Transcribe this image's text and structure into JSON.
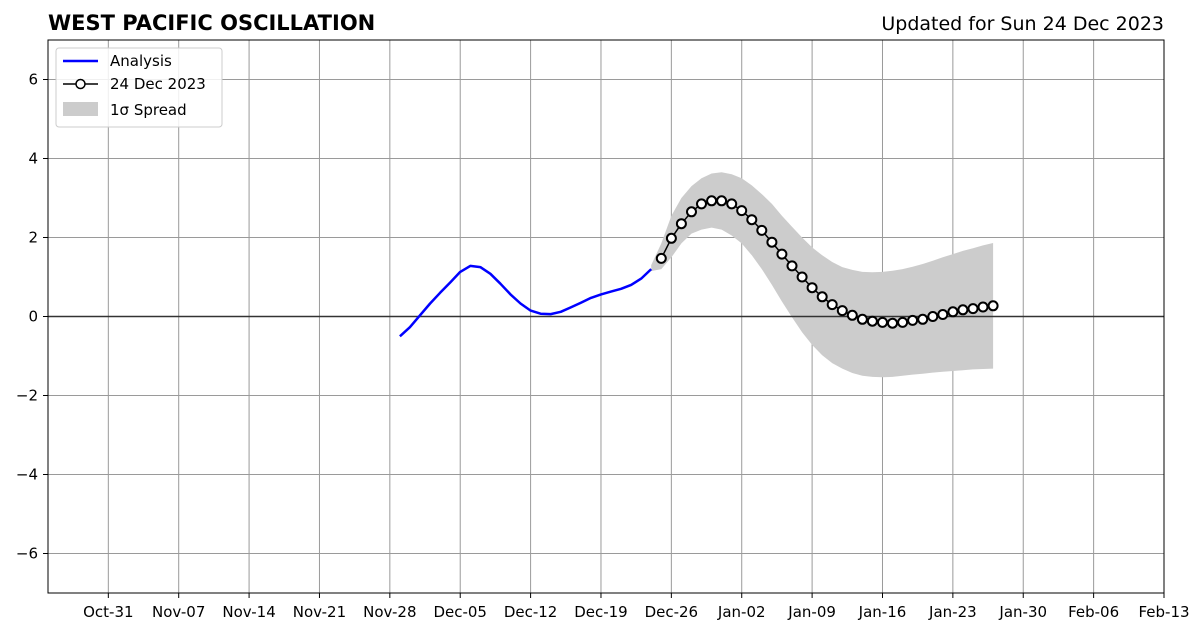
{
  "chart_data": {
    "type": "line",
    "title": "WEST PACIFIC OSCILLATION",
    "subtitle": "Updated for Sun 24 Dec 2023",
    "xlabel": "",
    "ylabel": "",
    "x_start_date": "2023-10-25",
    "xlim": [
      "2023-10-25",
      "2024-02-13"
    ],
    "ylim": [
      -7,
      7
    ],
    "x_ticks": [
      {
        "date": "2023-10-31",
        "label": "Oct-31"
      },
      {
        "date": "2023-11-07",
        "label": "Nov-07"
      },
      {
        "date": "2023-11-14",
        "label": "Nov-14"
      },
      {
        "date": "2023-11-21",
        "label": "Nov-21"
      },
      {
        "date": "2023-11-28",
        "label": "Nov-28"
      },
      {
        "date": "2023-12-05",
        "label": "Dec-05"
      },
      {
        "date": "2023-12-12",
        "label": "Dec-12"
      },
      {
        "date": "2023-12-19",
        "label": "Dec-19"
      },
      {
        "date": "2023-12-26",
        "label": "Dec-26"
      },
      {
        "date": "2024-01-02",
        "label": "Jan-02"
      },
      {
        "date": "2024-01-09",
        "label": "Jan-09"
      },
      {
        "date": "2024-01-16",
        "label": "Jan-16"
      },
      {
        "date": "2024-01-23",
        "label": "Jan-23"
      },
      {
        "date": "2024-01-30",
        "label": "Jan-30"
      },
      {
        "date": "2024-02-06",
        "label": "Feb-06"
      },
      {
        "date": "2024-02-13",
        "label": "Feb-13"
      }
    ],
    "y_ticks": [
      {
        "value": -6,
        "label": "−6"
      },
      {
        "value": -4,
        "label": "−4"
      },
      {
        "value": -2,
        "label": "−2"
      },
      {
        "value": 0,
        "label": "0"
      },
      {
        "value": 2,
        "label": "2"
      },
      {
        "value": 4,
        "label": "4"
      },
      {
        "value": 6,
        "label": "6"
      }
    ],
    "grid": true,
    "legend_position": "top-left",
    "series": [
      {
        "name": "Analysis",
        "color": "#0000ff",
        "x": [
          "2023-11-29",
          "2023-11-30",
          "2023-12-01",
          "2023-12-02",
          "2023-12-03",
          "2023-12-04",
          "2023-12-05",
          "2023-12-06",
          "2023-12-07",
          "2023-12-08",
          "2023-12-09",
          "2023-12-10",
          "2023-12-11",
          "2023-12-12",
          "2023-12-13",
          "2023-12-14",
          "2023-12-15",
          "2023-12-16",
          "2023-12-17",
          "2023-12-18",
          "2023-12-19",
          "2023-12-20",
          "2023-12-21",
          "2023-12-22",
          "2023-12-23",
          "2023-12-24"
        ],
        "y": [
          -0.5,
          -0.27,
          0.03,
          0.33,
          0.6,
          0.86,
          1.13,
          1.28,
          1.25,
          1.08,
          0.83,
          0.56,
          0.33,
          0.15,
          0.07,
          0.06,
          0.12,
          0.23,
          0.35,
          0.47,
          0.56,
          0.63,
          0.7,
          0.8,
          0.96,
          1.2
        ]
      },
      {
        "name": "24 Dec 2023",
        "color": "#000000",
        "marker": "circle",
        "x": [
          "2023-12-25",
          "2023-12-26",
          "2023-12-27",
          "2023-12-28",
          "2023-12-29",
          "2023-12-30",
          "2023-12-31",
          "2024-01-01",
          "2024-01-02",
          "2024-01-03",
          "2024-01-04",
          "2024-01-05",
          "2024-01-06",
          "2024-01-07",
          "2024-01-08",
          "2024-01-09",
          "2024-01-10",
          "2024-01-11",
          "2024-01-12",
          "2024-01-13",
          "2024-01-14",
          "2024-01-15",
          "2024-01-16",
          "2024-01-17",
          "2024-01-18",
          "2024-01-19",
          "2024-01-20",
          "2024-01-21",
          "2024-01-22",
          "2024-01-23",
          "2024-01-24",
          "2024-01-25",
          "2024-01-26",
          "2024-01-27"
        ],
        "y": [
          1.47,
          1.98,
          2.35,
          2.65,
          2.85,
          2.93,
          2.93,
          2.85,
          2.68,
          2.45,
          2.18,
          1.88,
          1.58,
          1.28,
          1.0,
          0.73,
          0.5,
          0.3,
          0.15,
          0.03,
          -0.07,
          -0.12,
          -0.15,
          -0.17,
          -0.15,
          -0.1,
          -0.07,
          0.0,
          0.05,
          0.12,
          0.17,
          0.2,
          0.24,
          0.27
        ]
      }
    ],
    "spread": {
      "name": "1σ Spread",
      "color": "#cccccc",
      "x": [
        "2023-12-24",
        "2023-12-25",
        "2023-12-26",
        "2023-12-27",
        "2023-12-28",
        "2023-12-29",
        "2023-12-30",
        "2023-12-31",
        "2024-01-01",
        "2024-01-02",
        "2024-01-03",
        "2024-01-04",
        "2024-01-05",
        "2024-01-06",
        "2024-01-07",
        "2024-01-08",
        "2024-01-09",
        "2024-01-10",
        "2024-01-11",
        "2024-01-12",
        "2024-01-13",
        "2024-01-14",
        "2024-01-15",
        "2024-01-16",
        "2024-01-17",
        "2024-01-18",
        "2024-01-19",
        "2024-01-20",
        "2024-01-21",
        "2024-01-22",
        "2024-01-23",
        "2024-01-24",
        "2024-01-25",
        "2024-01-26",
        "2024-01-27"
      ],
      "upper": [
        1.3,
        1.85,
        2.55,
        3.0,
        3.3,
        3.5,
        3.62,
        3.65,
        3.6,
        3.5,
        3.32,
        3.1,
        2.85,
        2.55,
        2.27,
        2.0,
        1.75,
        1.55,
        1.38,
        1.25,
        1.18,
        1.13,
        1.12,
        1.13,
        1.16,
        1.2,
        1.26,
        1.33,
        1.41,
        1.5,
        1.58,
        1.66,
        1.73,
        1.8,
        1.86
      ],
      "lower": [
        1.15,
        1.2,
        1.5,
        1.85,
        2.1,
        2.2,
        2.25,
        2.2,
        2.05,
        1.85,
        1.55,
        1.2,
        0.8,
        0.38,
        -0.02,
        -0.4,
        -0.72,
        -0.98,
        -1.18,
        -1.32,
        -1.43,
        -1.5,
        -1.53,
        -1.54,
        -1.53,
        -1.5,
        -1.47,
        -1.45,
        -1.42,
        -1.4,
        -1.38,
        -1.36,
        -1.34,
        -1.33,
        -1.32
      ]
    }
  }
}
